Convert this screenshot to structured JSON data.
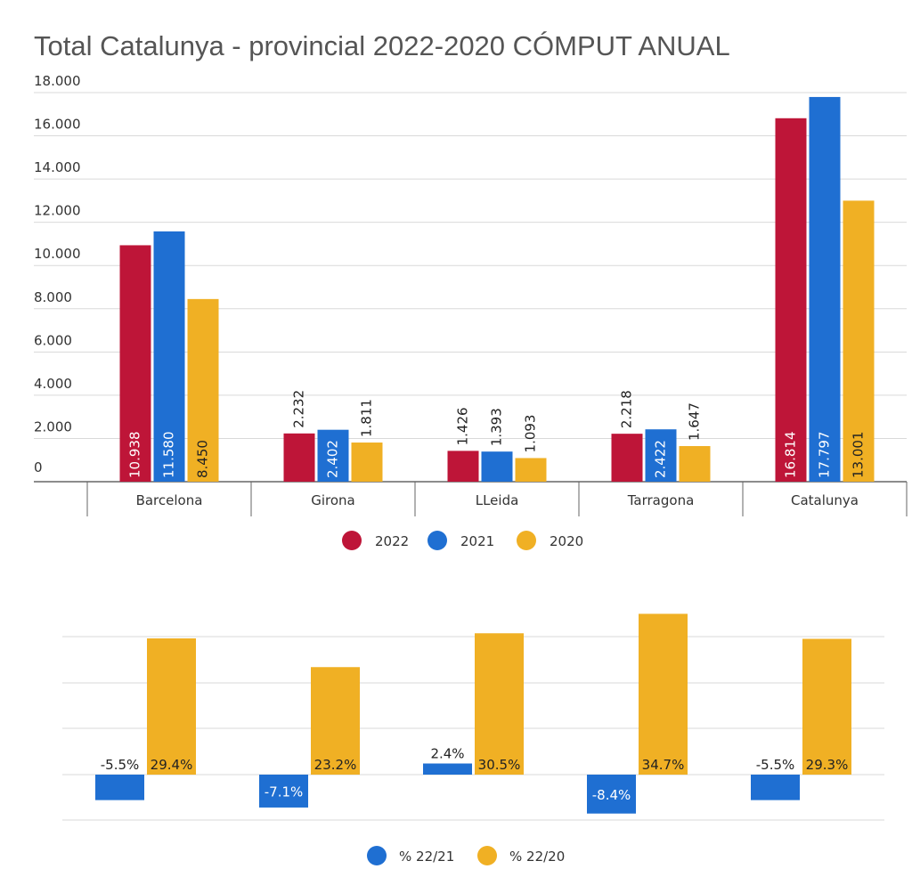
{
  "title": "Total Catalunya - provincial  2022-2020 CÓMPUT ANUAL",
  "colors": {
    "2022": "#be1538",
    "2021": "#1f6fd2",
    "2020": "#f0b024",
    "grid": "#d9d9d9",
    "axis": "#666666"
  },
  "chart_data": [
    {
      "type": "bar",
      "title": "Total Catalunya - provincial  2022-2020 CÓMPUT ANUAL",
      "categories": [
        "Barcelona",
        "Girona",
        "LLeida",
        "Tarragona",
        "Catalunya"
      ],
      "series": [
        {
          "name": "2022",
          "color": "#be1538",
          "values": [
            10938,
            2232,
            1426,
            2218,
            16814
          ],
          "labels": [
            "10.938",
            "2.232",
            "1.426",
            "2.218",
            "16.814"
          ]
        },
        {
          "name": "2021",
          "color": "#1f6fd2",
          "values": [
            11580,
            2402,
            1393,
            2422,
            17797
          ],
          "labels": [
            "11.580",
            "2.402",
            "1.393",
            "2.422",
            "17.797"
          ]
        },
        {
          "name": "2020",
          "color": "#f0b024",
          "values": [
            8450,
            1811,
            1093,
            1647,
            13001
          ],
          "labels": [
            "8.450",
            "1.811",
            "1.093",
            "1.647",
            "13.001"
          ]
        }
      ],
      "ylim": [
        0,
        18000
      ],
      "yticks": [
        "0",
        "2.000",
        "4.000",
        "6.000",
        "8.000",
        "10.000",
        "12.000",
        "14.000",
        "16.000",
        "18.000"
      ],
      "grid": true,
      "legend": "bottom-center"
    },
    {
      "type": "bar",
      "categories": [
        "Barcelona",
        "Girona",
        "LLeida",
        "Tarragona",
        "Catalunya"
      ],
      "series": [
        {
          "name": "% 22/21",
          "color": "#1f6fd2",
          "values": [
            -5.5,
            -7.1,
            2.4,
            -8.4,
            -5.5
          ],
          "labels": [
            "-5.5%",
            "-7.1%",
            "2.4%",
            "-8.4%",
            "-5.5%"
          ]
        },
        {
          "name": "% 22/20",
          "color": "#f0b024",
          "values": [
            29.4,
            23.2,
            30.5,
            34.7,
            29.3
          ],
          "labels": [
            "29.4%",
            "23.2%",
            "30.5%",
            "34.7%",
            "29.3%"
          ]
        }
      ],
      "grid": true,
      "legend": "bottom-center"
    }
  ]
}
